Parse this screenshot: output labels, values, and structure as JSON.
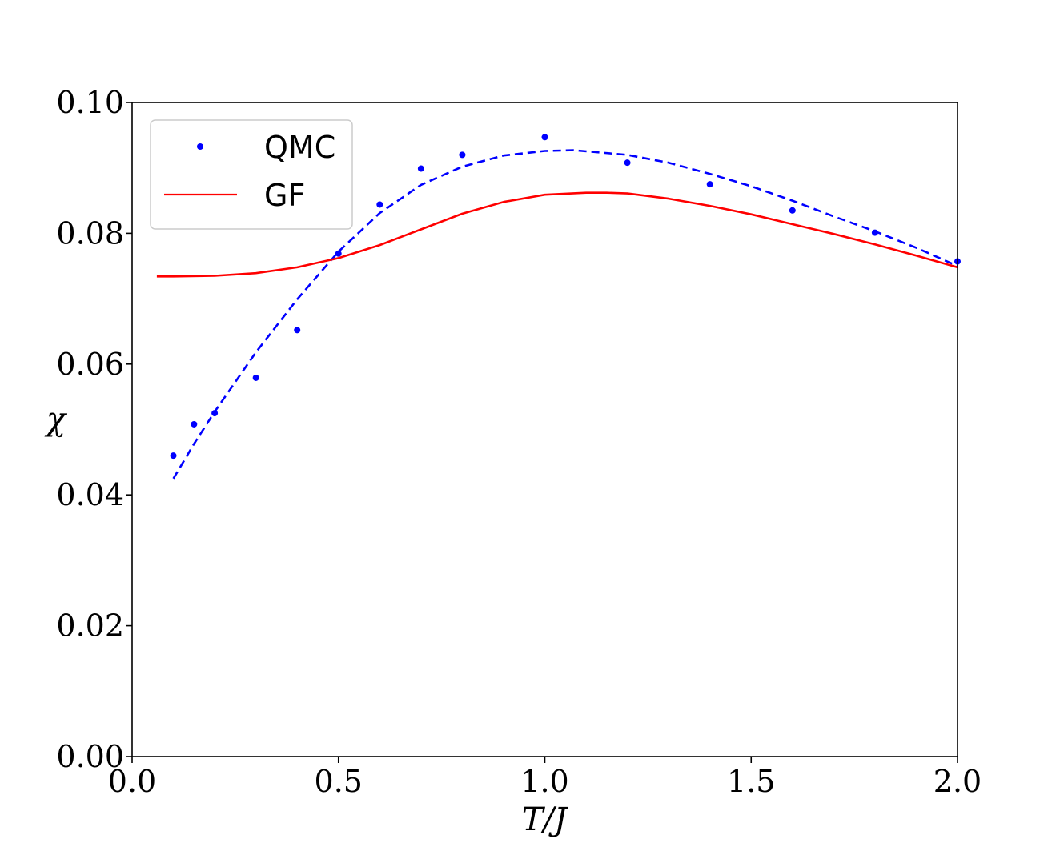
{
  "chart_data": {
    "type": "line",
    "title": "",
    "xlabel": "T/J",
    "ylabel": "χ",
    "xlim": [
      0.0,
      2.0
    ],
    "ylim": [
      0.0,
      0.1
    ],
    "xticks": [
      0.0,
      0.5,
      1.0,
      1.5,
      2.0
    ],
    "xtick_labels": [
      "0.0",
      "0.5",
      "1.0",
      "1.5",
      "2.0"
    ],
    "yticks": [
      0.0,
      0.02,
      0.04,
      0.06,
      0.08,
      0.1
    ],
    "ytick_labels": [
      "0.00",
      "0.02",
      "0.04",
      "0.06",
      "0.08",
      "0.10"
    ],
    "grid": false,
    "legend_position": "top-left",
    "series": [
      {
        "name": "QMC",
        "style": "points",
        "color": "#0000ff",
        "x": [
          0.1,
          0.15,
          0.2,
          0.3,
          0.4,
          0.5,
          0.6,
          0.7,
          0.8,
          1.0,
          1.2,
          1.4,
          1.6,
          1.8,
          2.0
        ],
        "y": [
          0.046,
          0.0508,
          0.0525,
          0.0579,
          0.0652,
          0.0769,
          0.0844,
          0.0899,
          0.092,
          0.0947,
          0.0908,
          0.0875,
          0.0835,
          0.0801,
          0.0757
        ]
      },
      {
        "name": "",
        "style": "dashed-line",
        "color": "#0000ff",
        "x": [
          0.1,
          0.15,
          0.2,
          0.3,
          0.4,
          0.5,
          0.6,
          0.7,
          0.8,
          0.9,
          1.0,
          1.07,
          1.2,
          1.3,
          1.4,
          1.5,
          1.6,
          1.7,
          1.8,
          1.9,
          2.0
        ],
        "y": [
          0.0425,
          0.0478,
          0.0527,
          0.0618,
          0.0699,
          0.0772,
          0.0831,
          0.0874,
          0.0902,
          0.0919,
          0.0926,
          0.0927,
          0.092,
          0.0908,
          0.0891,
          0.0872,
          0.085,
          0.0826,
          0.0803,
          0.0778,
          0.075
        ]
      },
      {
        "name": "GF",
        "style": "line",
        "color": "#ff0000",
        "x": [
          0.06,
          0.1,
          0.2,
          0.3,
          0.4,
          0.5,
          0.6,
          0.7,
          0.8,
          0.9,
          1.0,
          1.1,
          1.15,
          1.2,
          1.3,
          1.4,
          1.5,
          1.6,
          1.7,
          1.8,
          1.9,
          2.0
        ],
        "y": [
          0.0734,
          0.0734,
          0.0735,
          0.0739,
          0.0748,
          0.0762,
          0.0782,
          0.0806,
          0.083,
          0.0848,
          0.0859,
          0.0862,
          0.0862,
          0.0861,
          0.0853,
          0.0842,
          0.0829,
          0.0814,
          0.0799,
          0.0783,
          0.0766,
          0.0748
        ]
      }
    ]
  }
}
